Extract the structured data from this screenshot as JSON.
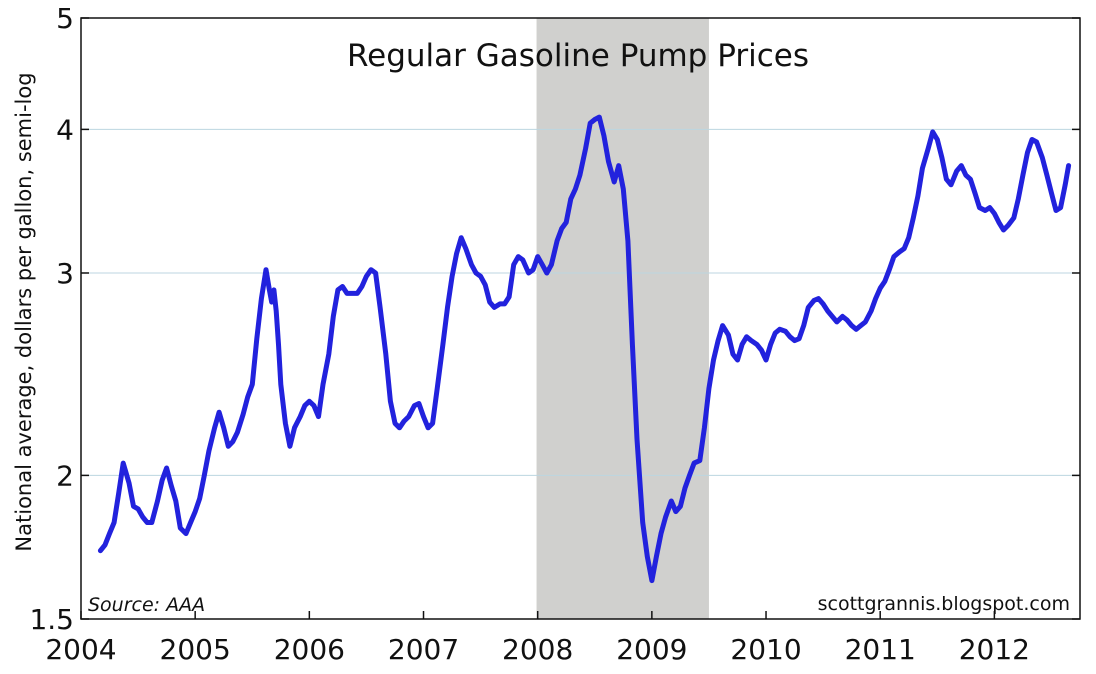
{
  "chart_data": {
    "type": "line",
    "title": "Regular Gasoline Pump Prices",
    "ylabel": "National average, dollars per gallon, semi-log",
    "xlabel": "",
    "y_scale": "log",
    "ylim": [
      1.5,
      5
    ],
    "xlim": [
      2004.0,
      2012.75
    ],
    "y_ticks": [
      1.5,
      2,
      3,
      4,
      5
    ],
    "y_tick_labels": [
      "1.5",
      "2",
      "3",
      "4",
      "5"
    ],
    "x_ticks": [
      2004,
      2005,
      2006,
      2007,
      2008,
      2009,
      2010,
      2011,
      2012
    ],
    "x_tick_labels": [
      "2004",
      "2005",
      "2006",
      "2007",
      "2008",
      "2009",
      "2010",
      "2011",
      "2012"
    ],
    "grid": "horizontal",
    "shaded_region": {
      "x_start": 2007.99,
      "x_end": 2009.5,
      "color": "#d0d0ce"
    },
    "line_color": "#2222dd",
    "annotations": {
      "source": "Source: AAA",
      "credit": "scottgrannis.blogspot.com"
    },
    "series": [
      {
        "x": [
          2004.17,
          2004.21,
          2004.25,
          2004.29,
          2004.33,
          2004.37,
          2004.42,
          2004.46,
          2004.5,
          2004.54,
          2004.58,
          2004.62,
          2004.67,
          2004.71,
          2004.75,
          2004.79,
          2004.83,
          2004.87,
          2004.92,
          2004.96,
          2005.0,
          2005.04,
          2005.08,
          2005.12,
          2005.17,
          2005.21,
          2005.25,
          2005.29,
          2005.33,
          2005.37,
          2005.42,
          2005.46,
          2005.5,
          2005.54,
          2005.58,
          2005.62,
          2005.65,
          2005.67,
          2005.69,
          2005.71,
          2005.73,
          2005.75,
          2005.79,
          2005.83,
          2005.87,
          2005.92,
          2005.96,
          2006.0,
          2006.04,
          2006.08,
          2006.12,
          2006.17,
          2006.21,
          2006.25,
          2006.29,
          2006.33,
          2006.37,
          2006.42,
          2006.46,
          2006.5,
          2006.54,
          2006.58,
          2006.62,
          2006.67,
          2006.71,
          2006.75,
          2006.79,
          2006.83,
          2006.87,
          2006.92,
          2006.96,
          2007.0,
          2007.04,
          2007.08,
          2007.12,
          2007.17,
          2007.21,
          2007.25,
          2007.29,
          2007.33,
          2007.37,
          2007.42,
          2007.46,
          2007.5,
          2007.54,
          2007.58,
          2007.62,
          2007.67,
          2007.71,
          2007.75,
          2007.79,
          2007.83,
          2007.87,
          2007.92,
          2007.96,
          2008.0,
          2008.04,
          2008.08,
          2008.12,
          2008.17,
          2008.21,
          2008.25,
          2008.29,
          2008.33,
          2008.37,
          2008.42,
          2008.46,
          2008.5,
          2008.54,
          2008.58,
          2008.62,
          2008.67,
          2008.71,
          2008.75,
          2008.79,
          2008.83,
          2008.87,
          2008.92,
          2008.96,
          2009.0,
          2009.04,
          2009.08,
          2009.12,
          2009.17,
          2009.21,
          2009.25,
          2009.29,
          2009.33,
          2009.37,
          2009.42,
          2009.46,
          2009.5,
          2009.54,
          2009.58,
          2009.62,
          2009.67,
          2009.71,
          2009.75,
          2009.79,
          2009.83,
          2009.87,
          2009.92,
          2009.96,
          2010.0,
          2010.04,
          2010.08,
          2010.12,
          2010.17,
          2010.21,
          2010.25,
          2010.29,
          2010.33,
          2010.37,
          2010.42,
          2010.46,
          2010.5,
          2010.54,
          2010.58,
          2010.62,
          2010.67,
          2010.71,
          2010.75,
          2010.79,
          2010.83,
          2010.87,
          2010.92,
          2010.96,
          2011.0,
          2011.04,
          2011.08,
          2011.12,
          2011.17,
          2011.21,
          2011.25,
          2011.29,
          2011.33,
          2011.37,
          2011.42,
          2011.46,
          2011.5,
          2011.54,
          2011.58,
          2011.62,
          2011.67,
          2011.71,
          2011.75,
          2011.79,
          2011.83,
          2011.87,
          2011.92,
          2011.96,
          2012.0,
          2012.04,
          2012.08,
          2012.12,
          2012.17,
          2012.21,
          2012.25,
          2012.29,
          2012.33,
          2012.37,
          2012.42,
          2012.46,
          2012.5,
          2012.54,
          2012.58,
          2012.62,
          2012.65
        ],
        "values": [
          1.72,
          1.74,
          1.78,
          1.82,
          1.93,
          2.05,
          1.97,
          1.88,
          1.87,
          1.84,
          1.82,
          1.82,
          1.9,
          1.98,
          2.03,
          1.96,
          1.9,
          1.8,
          1.78,
          1.82,
          1.86,
          1.91,
          2.0,
          2.1,
          2.2,
          2.27,
          2.2,
          2.12,
          2.14,
          2.18,
          2.26,
          2.34,
          2.4,
          2.63,
          2.85,
          3.02,
          2.9,
          2.83,
          2.9,
          2.78,
          2.6,
          2.4,
          2.22,
          2.12,
          2.2,
          2.25,
          2.3,
          2.32,
          2.3,
          2.25,
          2.4,
          2.55,
          2.75,
          2.9,
          2.92,
          2.88,
          2.88,
          2.88,
          2.92,
          2.98,
          3.02,
          3.0,
          2.8,
          2.55,
          2.32,
          2.22,
          2.2,
          2.23,
          2.25,
          2.3,
          2.31,
          2.25,
          2.2,
          2.22,
          2.38,
          2.6,
          2.8,
          2.98,
          3.12,
          3.22,
          3.15,
          3.05,
          3.0,
          2.98,
          2.93,
          2.83,
          2.8,
          2.82,
          2.82,
          2.86,
          3.05,
          3.1,
          3.08,
          3.0,
          3.02,
          3.1,
          3.05,
          3.0,
          3.05,
          3.2,
          3.28,
          3.32,
          3.48,
          3.55,
          3.65,
          3.85,
          4.05,
          4.08,
          4.1,
          3.95,
          3.75,
          3.6,
          3.72,
          3.55,
          3.2,
          2.6,
          2.15,
          1.82,
          1.7,
          1.62,
          1.7,
          1.78,
          1.84,
          1.9,
          1.86,
          1.88,
          1.95,
          2.0,
          2.05,
          2.06,
          2.2,
          2.38,
          2.52,
          2.62,
          2.7,
          2.65,
          2.55,
          2.52,
          2.6,
          2.64,
          2.62,
          2.6,
          2.57,
          2.52,
          2.6,
          2.66,
          2.68,
          2.67,
          2.64,
          2.62,
          2.63,
          2.7,
          2.8,
          2.84,
          2.85,
          2.82,
          2.78,
          2.75,
          2.72,
          2.75,
          2.73,
          2.7,
          2.68,
          2.7,
          2.72,
          2.78,
          2.85,
          2.91,
          2.95,
          3.02,
          3.1,
          3.13,
          3.15,
          3.22,
          3.35,
          3.5,
          3.7,
          3.85,
          3.98,
          3.92,
          3.78,
          3.62,
          3.58,
          3.68,
          3.72,
          3.65,
          3.62,
          3.52,
          3.42,
          3.4,
          3.42,
          3.38,
          3.32,
          3.27,
          3.3,
          3.35,
          3.48,
          3.65,
          3.82,
          3.92,
          3.9,
          3.78,
          3.65,
          3.52,
          3.4,
          3.42,
          3.58,
          3.72
        ]
      }
    ]
  }
}
